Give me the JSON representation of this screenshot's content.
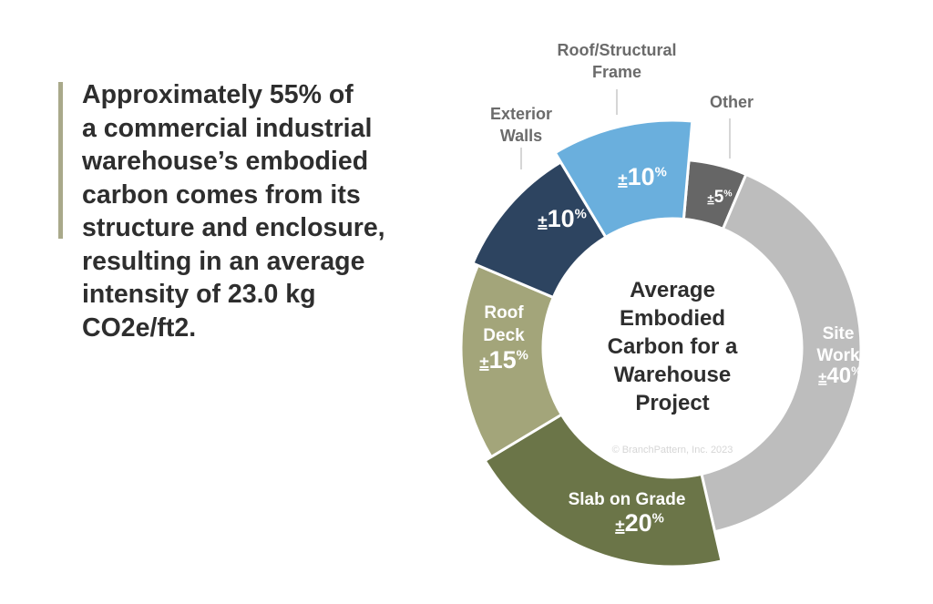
{
  "headline_lines": [
    "Approximately 55% of",
    "a commercial industrial",
    "warehouse’s embodied",
    "carbon comes from its",
    "structure and enclosure,",
    "resulting in an average",
    "intensity of 23.0 kg",
    "CO2e/ft2."
  ],
  "colors": {
    "accent_bar": "#a9a98a",
    "text": "#2e2e2e",
    "label_gray": "#6b6b6b"
  },
  "chart_data": {
    "type": "pie",
    "style": "donut",
    "title_lines": [
      "Average",
      "Embodied",
      "Carbon for a",
      "Warehouse",
      "Project"
    ],
    "value_prefix": "±",
    "value_suffix": "%",
    "copyright": "© BranchPattern, Inc. 2023",
    "slices": [
      {
        "label_lines": [
          "Other"
        ],
        "value": 5,
        "color": "#666666",
        "label_position": "outside"
      },
      {
        "label_lines": [
          "Site",
          "Work"
        ],
        "value": 40,
        "color": "#bdbdbd",
        "label_position": "inside"
      },
      {
        "label_lines": [
          "Slab on Grade"
        ],
        "value": 20,
        "color": "#6b7548",
        "label_position": "inside"
      },
      {
        "label_lines": [
          "Roof",
          "Deck"
        ],
        "value": 15,
        "color": "#a3a57a",
        "label_position": "inside"
      },
      {
        "label_lines": [
          "Exterior",
          "Walls"
        ],
        "value": 10,
        "color": "#2d4460",
        "label_position": "outside"
      },
      {
        "label_lines": [
          "Roof/Structural",
          "Frame"
        ],
        "value": 10,
        "color": "#6aafdd",
        "label_position": "outside"
      }
    ]
  }
}
